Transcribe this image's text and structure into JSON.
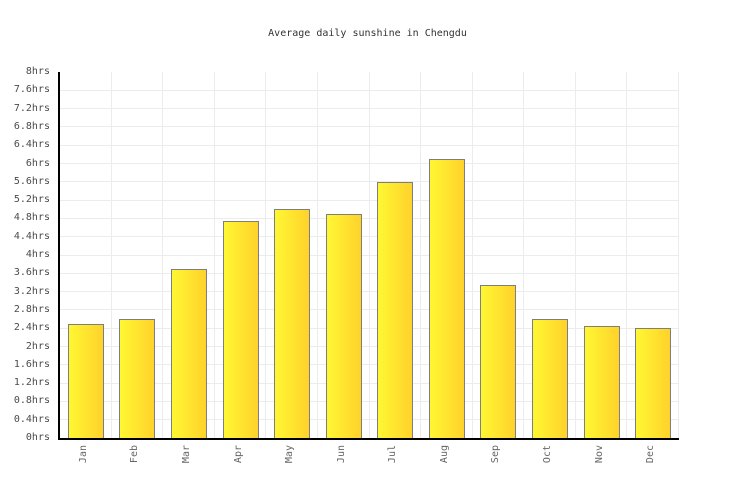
{
  "chart_data": {
    "type": "bar",
    "title": "Average daily sunshine in Chengdu",
    "categories": [
      "Jan",
      "Feb",
      "Mar",
      "Apr",
      "May",
      "Jun",
      "Jul",
      "Aug",
      "Sep",
      "Oct",
      "Nov",
      "Dec"
    ],
    "values": [
      2.5,
      2.6,
      3.7,
      4.75,
      5.0,
      4.9,
      5.6,
      6.1,
      3.35,
      2.6,
      2.45,
      2.4
    ],
    "unit": "hrs",
    "ylim": [
      0,
      8
    ],
    "ytick_step": 0.4,
    "ytick_labels_top_to_bottom": [
      "8hrs",
      "7.6hrs",
      "7.2hrs",
      "6.8hrs",
      "6.4hrs",
      "6hrs",
      "5.6hrs",
      "5.2hrs",
      "4.8hrs",
      "4.4hrs",
      "4hrs",
      "3.6hrs",
      "3.2hrs",
      "2.8hrs",
      "2.4hrs",
      "2hrs",
      "1.6hrs",
      "1.2hrs",
      "0.8hrs",
      "0.4hrs",
      "0hrs"
    ],
    "xlabel": "",
    "ylabel": "",
    "grid": true,
    "legend_position": "none",
    "x_labels_rotation_deg": -90,
    "colors": {
      "background": "#ffffff",
      "bar_gradient_left": "#fff733",
      "bar_gradient_right": "#ffd22b",
      "bar_border": "#7e7e7e",
      "axis": "#000000",
      "gridline": "#ececec",
      "title_text": "#333333",
      "ytick_text": "#4a4a4a",
      "xtick_text": "#666666"
    }
  }
}
